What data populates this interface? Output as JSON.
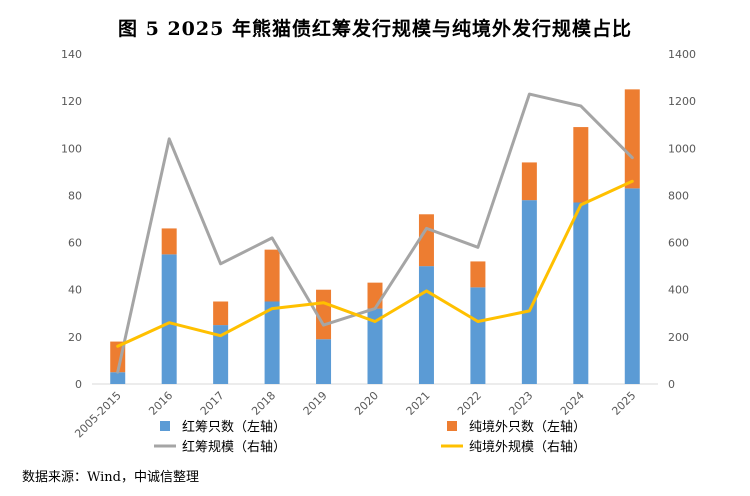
{
  "chart_data": {
    "type": "bar",
    "title": "图 5  2025 年熊猫债红筹发行规模与纯境外发行规模占比",
    "categories": [
      "2005-2015",
      "2016",
      "2017",
      "2018",
      "2019",
      "2020",
      "2021",
      "2022",
      "2023",
      "2024",
      "2025"
    ],
    "series": [
      {
        "name": "红筹只数（左轴）",
        "kind": "bar",
        "axis": "left",
        "color": "#5b9bd5",
        "values": [
          5,
          55,
          25,
          35,
          19,
          32,
          50,
          41,
          78,
          77,
          83
        ]
      },
      {
        "name": "纯境外只数（左轴）",
        "kind": "bar",
        "axis": "left",
        "color": "#ed7d31",
        "values": [
          13,
          11,
          10,
          22,
          21,
          11,
          22,
          11,
          16,
          32,
          42
        ]
      },
      {
        "name": "红筹规模（右轴）",
        "kind": "line",
        "axis": "right",
        "color": "#a5a5a5",
        "values": [
          50,
          1040,
          510,
          620,
          250,
          320,
          660,
          580,
          1230,
          1180,
          960
        ]
      },
      {
        "name": "纯境外规模（右轴）",
        "kind": "line",
        "axis": "right",
        "color": "#ffc000",
        "values": [
          160,
          260,
          205,
          320,
          345,
          265,
          395,
          265,
          310,
          760,
          860
        ]
      }
    ],
    "bar_mode": "stacked",
    "ylim_left": [
      0,
      140
    ],
    "yticks_left": [
      0,
      20,
      40,
      60,
      80,
      100,
      120,
      140
    ],
    "ylim_right": [
      0,
      1400
    ],
    "yticks_right": [
      0,
      200,
      400,
      600,
      800,
      1000,
      1200,
      1400
    ],
    "grid": false,
    "legend_position": "bottom"
  },
  "source": "数据来源：Wind，中诚信整理"
}
